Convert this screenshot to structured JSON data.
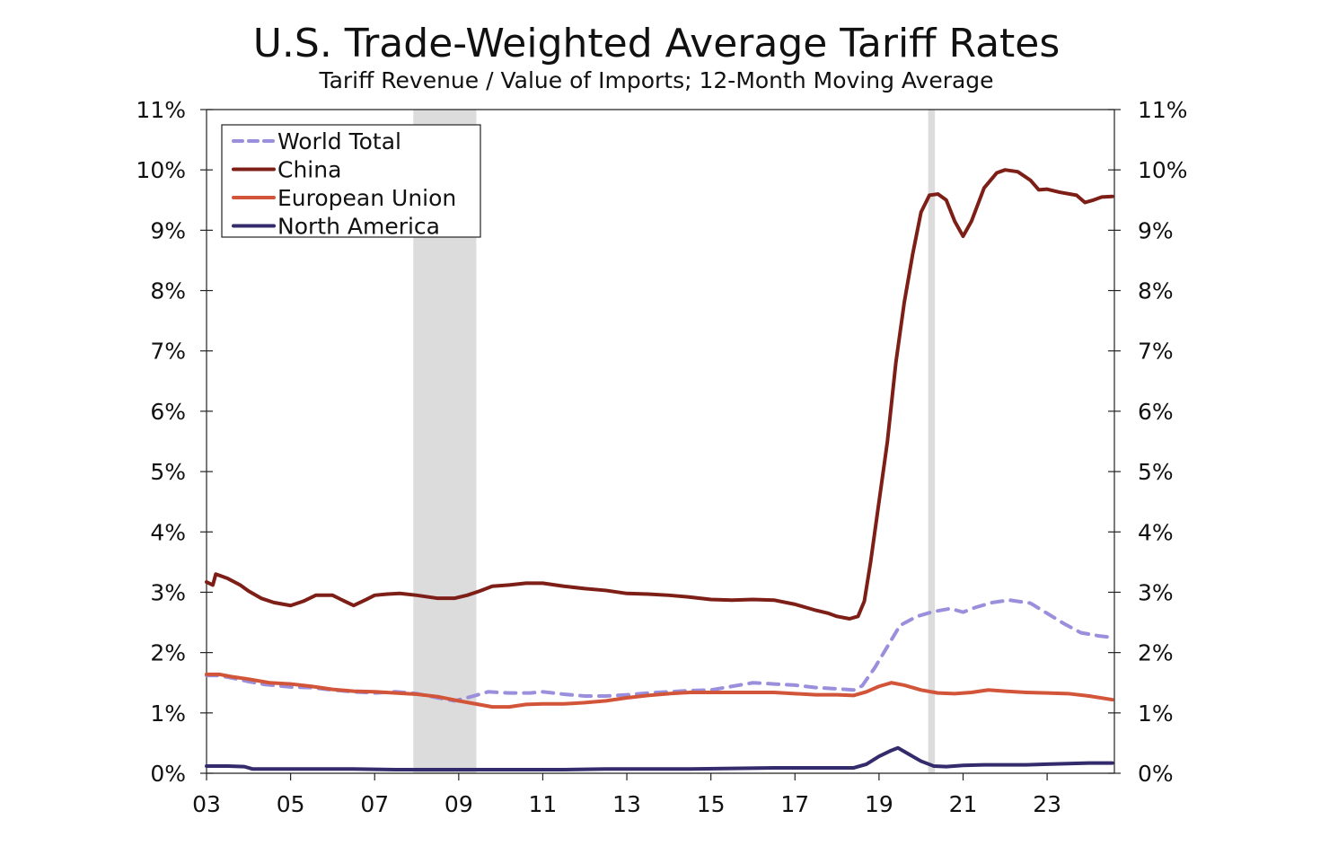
{
  "chart_data": {
    "type": "line",
    "title": "U.S. Trade-Weighted Average Tariff Rates",
    "subtitle": "Tariff Revenue / Value of Imports; 12-Month Moving Average",
    "xlabel": "",
    "ylabel": "",
    "x_range": [
      2003.0,
      2024.6
    ],
    "ylim": [
      0,
      11
    ],
    "x_ticks": [
      {
        "value": 2003,
        "label": "03"
      },
      {
        "value": 2005,
        "label": "05"
      },
      {
        "value": 2007,
        "label": "07"
      },
      {
        "value": 2009,
        "label": "09"
      },
      {
        "value": 2011,
        "label": "11"
      },
      {
        "value": 2013,
        "label": "13"
      },
      {
        "value": 2015,
        "label": "15"
      },
      {
        "value": 2017,
        "label": "17"
      },
      {
        "value": 2019,
        "label": "19"
      },
      {
        "value": 2021,
        "label": "21"
      },
      {
        "value": 2023,
        "label": "23"
      }
    ],
    "y_ticks": [
      {
        "value": 0,
        "label": "0%"
      },
      {
        "value": 1,
        "label": "1%"
      },
      {
        "value": 2,
        "label": "2%"
      },
      {
        "value": 3,
        "label": "3%"
      },
      {
        "value": 4,
        "label": "4%"
      },
      {
        "value": 5,
        "label": "5%"
      },
      {
        "value": 6,
        "label": "6%"
      },
      {
        "value": 7,
        "label": "7%"
      },
      {
        "value": 8,
        "label": "8%"
      },
      {
        "value": 9,
        "label": "9%"
      },
      {
        "value": 10,
        "label": "10%"
      },
      {
        "value": 11,
        "label": "11%"
      }
    ],
    "y_axis_right_mirror": true,
    "grid": false,
    "legend_position": "top-left",
    "shaded_periods": [
      {
        "start": 2007.92,
        "end": 2009.42,
        "color": "#dcdcdc"
      },
      {
        "start": 2020.17,
        "end": 2020.33,
        "color": "#dcdcdc"
      }
    ],
    "series": [
      {
        "name": "World Total",
        "color": "#9a8fdc",
        "dash": true,
        "points": [
          [
            2003.0,
            1.62
          ],
          [
            2003.3,
            1.62
          ],
          [
            2003.6,
            1.58
          ],
          [
            2004.0,
            1.52
          ],
          [
            2004.4,
            1.47
          ],
          [
            2005.0,
            1.43
          ],
          [
            2005.5,
            1.42
          ],
          [
            2006.0,
            1.38
          ],
          [
            2006.5,
            1.35
          ],
          [
            2007.0,
            1.33
          ],
          [
            2007.5,
            1.35
          ],
          [
            2008.0,
            1.32
          ],
          [
            2008.5,
            1.25
          ],
          [
            2008.9,
            1.2
          ],
          [
            2009.3,
            1.27
          ],
          [
            2009.7,
            1.35
          ],
          [
            2010.2,
            1.33
          ],
          [
            2010.7,
            1.33
          ],
          [
            2011.0,
            1.35
          ],
          [
            2011.5,
            1.31
          ],
          [
            2012.0,
            1.28
          ],
          [
            2012.5,
            1.28
          ],
          [
            2013.0,
            1.3
          ],
          [
            2013.5,
            1.33
          ],
          [
            2014.0,
            1.35
          ],
          [
            2014.5,
            1.37
          ],
          [
            2015.0,
            1.38
          ],
          [
            2015.5,
            1.44
          ],
          [
            2016.0,
            1.5
          ],
          [
            2016.5,
            1.48
          ],
          [
            2017.0,
            1.46
          ],
          [
            2017.5,
            1.42
          ],
          [
            2018.0,
            1.4
          ],
          [
            2018.4,
            1.38
          ],
          [
            2018.6,
            1.45
          ],
          [
            2018.9,
            1.75
          ],
          [
            2019.2,
            2.1
          ],
          [
            2019.5,
            2.45
          ],
          [
            2019.9,
            2.6
          ],
          [
            2020.3,
            2.68
          ],
          [
            2020.7,
            2.73
          ],
          [
            2021.0,
            2.67
          ],
          [
            2021.3,
            2.75
          ],
          [
            2021.7,
            2.83
          ],
          [
            2022.1,
            2.87
          ],
          [
            2022.6,
            2.82
          ],
          [
            2023.0,
            2.65
          ],
          [
            2023.4,
            2.48
          ],
          [
            2023.8,
            2.33
          ],
          [
            2024.2,
            2.28
          ],
          [
            2024.55,
            2.25
          ]
        ]
      },
      {
        "name": "China",
        "color": "#7d1f17",
        "dash": false,
        "points": [
          [
            2003.0,
            3.17
          ],
          [
            2003.15,
            3.12
          ],
          [
            2003.22,
            3.3
          ],
          [
            2003.5,
            3.23
          ],
          [
            2003.8,
            3.12
          ],
          [
            2004.0,
            3.02
          ],
          [
            2004.3,
            2.9
          ],
          [
            2004.6,
            2.83
          ],
          [
            2005.0,
            2.78
          ],
          [
            2005.3,
            2.85
          ],
          [
            2005.6,
            2.95
          ],
          [
            2006.0,
            2.95
          ],
          [
            2006.2,
            2.88
          ],
          [
            2006.5,
            2.78
          ],
          [
            2006.8,
            2.88
          ],
          [
            2007.0,
            2.95
          ],
          [
            2007.3,
            2.97
          ],
          [
            2007.6,
            2.98
          ],
          [
            2008.0,
            2.95
          ],
          [
            2008.5,
            2.9
          ],
          [
            2008.9,
            2.9
          ],
          [
            2009.2,
            2.95
          ],
          [
            2009.5,
            3.02
          ],
          [
            2009.8,
            3.1
          ],
          [
            2010.2,
            3.12
          ],
          [
            2010.6,
            3.15
          ],
          [
            2011.0,
            3.15
          ],
          [
            2011.5,
            3.1
          ],
          [
            2012.0,
            3.06
          ],
          [
            2012.5,
            3.03
          ],
          [
            2013.0,
            2.98
          ],
          [
            2013.5,
            2.97
          ],
          [
            2014.0,
            2.95
          ],
          [
            2014.5,
            2.92
          ],
          [
            2015.0,
            2.88
          ],
          [
            2015.5,
            2.87
          ],
          [
            2016.0,
            2.88
          ],
          [
            2016.5,
            2.87
          ],
          [
            2017.0,
            2.8
          ],
          [
            2017.5,
            2.7
          ],
          [
            2017.8,
            2.65
          ],
          [
            2018.0,
            2.6
          ],
          [
            2018.3,
            2.56
          ],
          [
            2018.5,
            2.6
          ],
          [
            2018.65,
            2.85
          ],
          [
            2018.8,
            3.5
          ],
          [
            2019.0,
            4.5
          ],
          [
            2019.2,
            5.5
          ],
          [
            2019.4,
            6.8
          ],
          [
            2019.6,
            7.8
          ],
          [
            2019.8,
            8.6
          ],
          [
            2020.0,
            9.3
          ],
          [
            2020.2,
            9.58
          ],
          [
            2020.4,
            9.6
          ],
          [
            2020.6,
            9.5
          ],
          [
            2020.8,
            9.15
          ],
          [
            2021.0,
            8.9
          ],
          [
            2021.2,
            9.15
          ],
          [
            2021.5,
            9.7
          ],
          [
            2021.8,
            9.95
          ],
          [
            2022.0,
            10.0
          ],
          [
            2022.3,
            9.97
          ],
          [
            2022.6,
            9.83
          ],
          [
            2022.8,
            9.67
          ],
          [
            2023.0,
            9.68
          ],
          [
            2023.3,
            9.63
          ],
          [
            2023.7,
            9.58
          ],
          [
            2023.9,
            9.46
          ],
          [
            2024.1,
            9.5
          ],
          [
            2024.3,
            9.55
          ],
          [
            2024.55,
            9.56
          ]
        ]
      },
      {
        "name": "European Union",
        "color": "#d2553a",
        "dash": false,
        "points": [
          [
            2003.0,
            1.64
          ],
          [
            2003.3,
            1.64
          ],
          [
            2003.6,
            1.6
          ],
          [
            2004.0,
            1.56
          ],
          [
            2004.5,
            1.5
          ],
          [
            2005.0,
            1.48
          ],
          [
            2005.5,
            1.44
          ],
          [
            2006.0,
            1.39
          ],
          [
            2006.5,
            1.36
          ],
          [
            2007.0,
            1.35
          ],
          [
            2007.5,
            1.33
          ],
          [
            2008.0,
            1.31
          ],
          [
            2008.5,
            1.27
          ],
          [
            2009.0,
            1.2
          ],
          [
            2009.4,
            1.15
          ],
          [
            2009.8,
            1.1
          ],
          [
            2010.2,
            1.1
          ],
          [
            2010.6,
            1.14
          ],
          [
            2011.0,
            1.15
          ],
          [
            2011.5,
            1.15
          ],
          [
            2012.0,
            1.17
          ],
          [
            2012.5,
            1.2
          ],
          [
            2013.0,
            1.25
          ],
          [
            2013.5,
            1.29
          ],
          [
            2014.0,
            1.32
          ],
          [
            2014.5,
            1.34
          ],
          [
            2015.0,
            1.34
          ],
          [
            2015.5,
            1.34
          ],
          [
            2016.0,
            1.34
          ],
          [
            2016.5,
            1.34
          ],
          [
            2017.0,
            1.32
          ],
          [
            2017.5,
            1.3
          ],
          [
            2018.0,
            1.3
          ],
          [
            2018.4,
            1.29
          ],
          [
            2018.7,
            1.35
          ],
          [
            2019.0,
            1.44
          ],
          [
            2019.3,
            1.5
          ],
          [
            2019.6,
            1.46
          ],
          [
            2020.0,
            1.38
          ],
          [
            2020.4,
            1.33
          ],
          [
            2020.8,
            1.32
          ],
          [
            2021.2,
            1.34
          ],
          [
            2021.6,
            1.38
          ],
          [
            2022.0,
            1.36
          ],
          [
            2022.5,
            1.34
          ],
          [
            2023.0,
            1.33
          ],
          [
            2023.5,
            1.32
          ],
          [
            2024.0,
            1.28
          ],
          [
            2024.55,
            1.22
          ]
        ]
      },
      {
        "name": "North America",
        "color": "#332b6b",
        "dash": false,
        "points": [
          [
            2003.0,
            0.12
          ],
          [
            2003.5,
            0.12
          ],
          [
            2003.9,
            0.11
          ],
          [
            2004.1,
            0.07
          ],
          [
            2004.5,
            0.07
          ],
          [
            2005.5,
            0.07
          ],
          [
            2006.5,
            0.07
          ],
          [
            2007.5,
            0.06
          ],
          [
            2008.5,
            0.06
          ],
          [
            2009.5,
            0.06
          ],
          [
            2010.5,
            0.06
          ],
          [
            2011.5,
            0.06
          ],
          [
            2012.5,
            0.07
          ],
          [
            2013.5,
            0.07
          ],
          [
            2014.5,
            0.07
          ],
          [
            2015.5,
            0.08
          ],
          [
            2016.5,
            0.09
          ],
          [
            2017.5,
            0.09
          ],
          [
            2018.4,
            0.09
          ],
          [
            2018.7,
            0.15
          ],
          [
            2019.0,
            0.28
          ],
          [
            2019.3,
            0.38
          ],
          [
            2019.45,
            0.42
          ],
          [
            2019.7,
            0.32
          ],
          [
            2020.0,
            0.2
          ],
          [
            2020.3,
            0.12
          ],
          [
            2020.6,
            0.11
          ],
          [
            2021.0,
            0.13
          ],
          [
            2021.5,
            0.14
          ],
          [
            2022.0,
            0.14
          ],
          [
            2022.5,
            0.14
          ],
          [
            2023.0,
            0.15
          ],
          [
            2023.5,
            0.16
          ],
          [
            2024.0,
            0.17
          ],
          [
            2024.55,
            0.17
          ]
        ]
      }
    ]
  }
}
